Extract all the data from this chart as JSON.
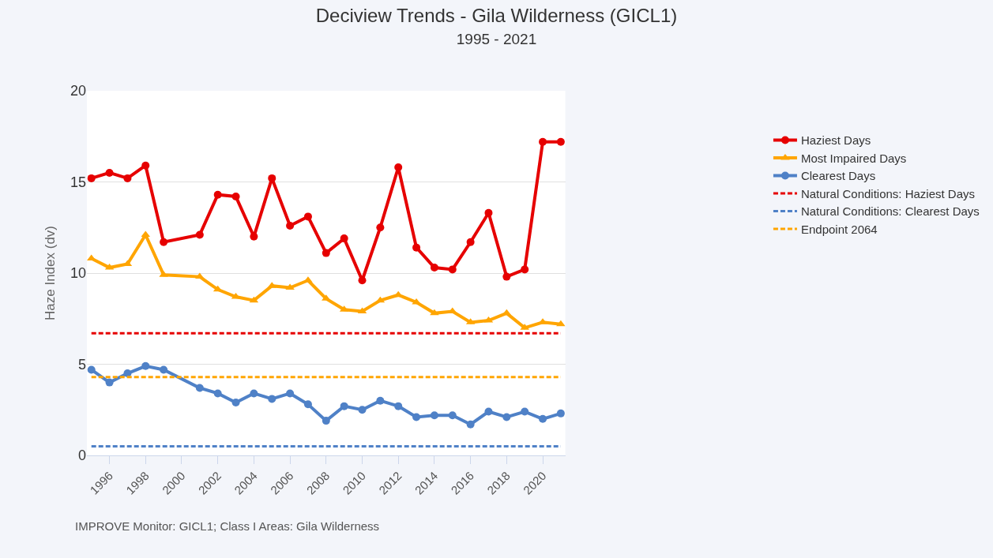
{
  "chart_data": {
    "type": "line",
    "title": "Deciview Trends - Gila Wilderness (GICL1)",
    "subtitle": "1995 - 2021",
    "ylabel": "Haze Index (dv)",
    "x": [
      1995,
      1996,
      1997,
      1998,
      1999,
      2001,
      2002,
      2003,
      2004,
      2005,
      2006,
      2007,
      2008,
      2009,
      2010,
      2011,
      2012,
      2013,
      2014,
      2015,
      2016,
      2017,
      2018,
      2019,
      2020,
      2021
    ],
    "series": [
      {
        "name": "Haziest Days",
        "color": "#e60000",
        "marker": "circle",
        "line_style": "solid",
        "values": [
          15.2,
          15.5,
          15.2,
          15.9,
          11.7,
          12.1,
          14.3,
          14.2,
          12.0,
          15.2,
          12.6,
          13.1,
          11.1,
          11.9,
          9.6,
          12.5,
          15.8,
          11.4,
          10.3,
          10.2,
          11.7,
          13.3,
          9.8,
          10.2,
          17.2,
          17.2
        ]
      },
      {
        "name": "Most Impaired Days",
        "color": "#ffa500",
        "marker": "triangle",
        "line_style": "solid",
        "values": [
          10.8,
          10.3,
          10.5,
          12.1,
          9.9,
          9.8,
          9.1,
          8.7,
          8.5,
          9.3,
          9.2,
          9.6,
          8.6,
          8.0,
          7.9,
          8.5,
          8.8,
          8.4,
          7.8,
          7.9,
          7.3,
          7.4,
          7.8,
          7.0,
          7.3,
          7.2
        ]
      },
      {
        "name": "Clearest Days",
        "color": "#4f81c7",
        "marker": "circle",
        "line_style": "solid",
        "values": [
          4.7,
          4.0,
          4.5,
          4.9,
          4.7,
          3.7,
          3.4,
          2.9,
          3.4,
          3.1,
          3.4,
          2.8,
          1.9,
          2.7,
          2.5,
          3.0,
          2.7,
          2.1,
          2.2,
          2.2,
          1.7,
          2.4,
          2.1,
          2.4,
          2.0,
          2.3
        ]
      }
    ],
    "ref_lines": [
      {
        "axis": "y",
        "value": 6.7,
        "label": "Natural Conditions: Haziest Days",
        "color": "#e60000",
        "line_style": "dashed"
      },
      {
        "axis": "y",
        "value": 0.5,
        "label": "Natural Conditions: Clearest Days",
        "color": "#4f81c7",
        "line_style": "dashed"
      },
      {
        "axis": "y",
        "value": 4.3,
        "label": "Endpoint 2064",
        "color": "#ffa500",
        "line_style": "dashed"
      }
    ],
    "xlim": [
      1994.75,
      2021.25
    ],
    "xticks": [
      1996,
      1998,
      2000,
      2002,
      2004,
      2006,
      2008,
      2010,
      2012,
      2014,
      2016,
      2018,
      2020
    ],
    "ylim": [
      0,
      20
    ],
    "yticks": [
      0,
      5,
      10,
      15,
      20
    ],
    "grid": "y",
    "legend": "right",
    "annotations": [
      "IMPROVE Monitor: GICL1; Class I Areas: Gila Wilderness"
    ]
  }
}
